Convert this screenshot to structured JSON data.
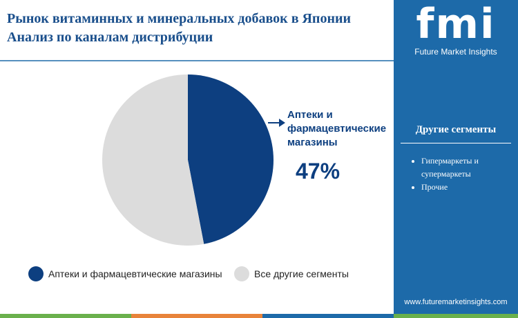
{
  "chart_data": {
    "type": "pie",
    "title": "Рынок витаминных и минеральных добавок в Японии Анализ по каналам дистрибуции",
    "categories": [
      "Аптеки и фармацевтические магазины",
      "Все другие сегменты"
    ],
    "values": [
      47,
      53
    ],
    "value_labels": [
      "47%",
      null
    ],
    "colors": [
      "#0d3f80",
      "#dcdcdc"
    ],
    "legend": "bottom"
  },
  "side_panel": {
    "logo": "fmi",
    "brand": "Future Market Insights",
    "title": "Другие сегменты",
    "items": [
      "Гипермаркеты и супермаркеты",
      "Прочие"
    ],
    "website": "www.futuremarketinsights.com"
  }
}
